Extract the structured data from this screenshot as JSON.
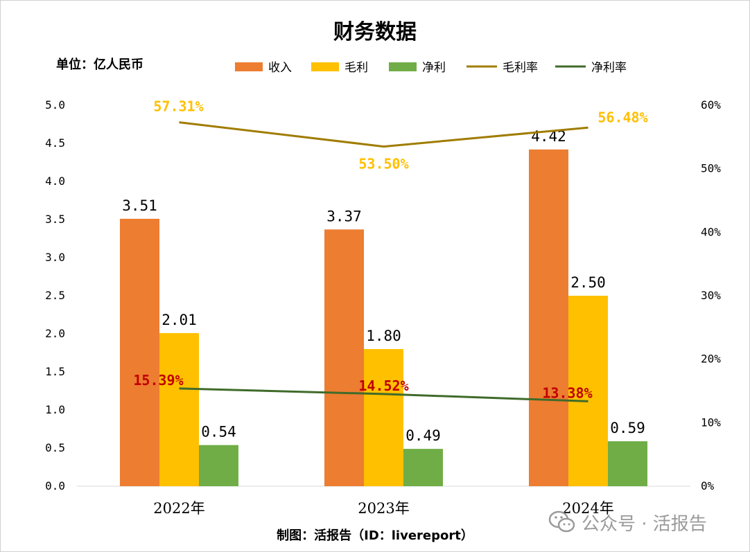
{
  "title": "财务数据",
  "unit_label": "单位：亿人民币",
  "footer": "制图：活报告（ID：livereport）",
  "watermark": "公众号 · 活报告",
  "colors": {
    "revenue": "#ED7D31",
    "gross_profit": "#FFC000",
    "net_profit": "#70AD47",
    "gross_margin": "#A07C00",
    "net_margin": "#3F6B2A",
    "gross_margin_label": "#FFC000",
    "net_margin_label": "#C00000"
  },
  "chart_data": {
    "type": "bar",
    "title": "财务数据",
    "categories": [
      "2022年",
      "2023年",
      "2024年"
    ],
    "series": [
      {
        "name": "收入",
        "values": [
          3.51,
          3.37,
          4.42
        ],
        "labels": [
          "3.51",
          "3.37",
          "4.42"
        ]
      },
      {
        "name": "毛利",
        "values": [
          2.01,
          1.8,
          2.5
        ],
        "labels": [
          "2.01",
          "1.80",
          "2.50"
        ]
      },
      {
        "name": "净利",
        "values": [
          0.54,
          0.49,
          0.59
        ],
        "labels": [
          "0.54",
          "0.49",
          "0.59"
        ]
      }
    ],
    "line_series": [
      {
        "name": "毛利率",
        "values": [
          57.31,
          53.5,
          56.48
        ],
        "labels": [
          "57.31%",
          "53.50%",
          "56.48%"
        ],
        "axis": "right"
      },
      {
        "name": "净利率",
        "values": [
          15.39,
          14.52,
          13.38
        ],
        "labels": [
          "15.39%",
          "14.52%",
          "13.38%"
        ],
        "axis": "right"
      }
    ],
    "ylim": [
      0,
      5
    ],
    "y_ticks": [
      "0.0",
      "0.5",
      "1.0",
      "1.5",
      "2.0",
      "2.5",
      "3.0",
      "3.5",
      "4.0",
      "4.5",
      "5.0"
    ],
    "y2lim": [
      0,
      60
    ],
    "y2_ticks": [
      "0%",
      "10%",
      "20%",
      "30%",
      "40%",
      "50%",
      "60%"
    ],
    "legend": [
      "收入",
      "毛利",
      "净利",
      "毛利率",
      "净利率"
    ],
    "legend_position": "top",
    "grid": false
  }
}
